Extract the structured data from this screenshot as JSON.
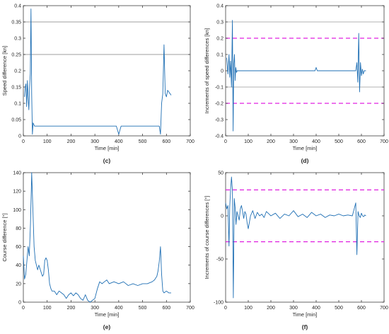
{
  "chart_data": [
    {
      "type": "line",
      "panel_label": "(c)",
      "xlabel": "Time [min]",
      "ylabel": "Speed difference [kn]",
      "xlim": [
        0,
        700
      ],
      "ylim": [
        0,
        0.4
      ],
      "xticks": [
        0,
        100,
        200,
        300,
        400,
        500,
        600,
        700
      ],
      "yticks": [
        0,
        0.05,
        0.1,
        0.15,
        0.2,
        0.25,
        0.3,
        0.35,
        0.4
      ],
      "ytick_labels": [
        "0",
        "0.05",
        "0.1",
        "0.15",
        "0.2",
        "0.25",
        "0.3",
        "0.35",
        "0.4"
      ],
      "reference_lines": [
        {
          "y": 0.25,
          "style": "solid",
          "color": "#7f7f7f"
        },
        {
          "y": 0.35,
          "style": "solid",
          "color": "#7f7f7f"
        }
      ],
      "series": [
        {
          "color": "#1f6fb4",
          "x": [
            5,
            8,
            11,
            14,
            17,
            20,
            23,
            26,
            29,
            32,
            35,
            38,
            41,
            44,
            47,
            50,
            55,
            60,
            100,
            200,
            300,
            390,
            400,
            410,
            500,
            570,
            575,
            580,
            585,
            590,
            595,
            600,
            605,
            610,
            615,
            620
          ],
          "y": [
            0.12,
            0.15,
            0.16,
            0.09,
            0.17,
            0.12,
            0.08,
            0.15,
            0.19,
            0.39,
            0.13,
            0.005,
            0.04,
            0.035,
            0.03,
            0.03,
            0.03,
            0.03,
            0.03,
            0.03,
            0.03,
            0.03,
            0.005,
            0.03,
            0.03,
            0.03,
            0.005,
            0.1,
            0.13,
            0.28,
            0.13,
            0.12,
            0.14,
            0.135,
            0.13,
            0.125
          ]
        }
      ]
    },
    {
      "type": "line",
      "panel_label": "(d)",
      "xlabel": "Time [min]",
      "ylabel": "Increments of speed differences [kn]",
      "xlim": [
        0,
        700
      ],
      "ylim": [
        -0.4,
        0.4
      ],
      "xticks": [
        0,
        100,
        200,
        300,
        400,
        500,
        600,
        700
      ],
      "yticks": [
        -0.4,
        -0.3,
        -0.2,
        -0.1,
        0,
        0.1,
        0.2,
        0.3,
        0.4
      ],
      "ytick_labels": [
        "-0.4",
        "-0.3",
        "-0.2",
        "-0.1",
        "0",
        "0.1",
        "0.2",
        "0.3",
        "0.4"
      ],
      "reference_lines": [
        {
          "y": 0.2,
          "style": "dashed",
          "color": "#e020e0"
        },
        {
          "y": -0.2,
          "style": "dashed",
          "color": "#e020e0"
        },
        {
          "y": 0.3,
          "style": "solid",
          "color": "#9a9a9a"
        },
        {
          "y": -0.1,
          "style": "solid",
          "color": "#9a9a9a"
        }
      ],
      "series": [
        {
          "color": "#1f6fb4",
          "x": [
            5,
            10,
            15,
            18,
            22,
            26,
            30,
            33,
            36,
            39,
            42,
            45,
            48,
            51,
            55,
            60,
            100,
            200,
            300,
            395,
            400,
            405,
            500,
            575,
            580,
            584,
            588,
            592,
            596,
            600,
            604,
            608,
            612,
            616,
            620
          ],
          "y": [
            0.08,
            -0.02,
            0.1,
            -0.04,
            0.06,
            -0.1,
            0.31,
            -0.37,
            0.04,
            0.1,
            -0.06,
            0.02,
            -0.01,
            0.0,
            0.0,
            0.0,
            0.0,
            0.0,
            0.0,
            0.0,
            0.02,
            0.0,
            0.0,
            0.0,
            0.05,
            -0.07,
            0.23,
            -0.13,
            0.05,
            -0.03,
            0.01,
            -0.02,
            0.0,
            0.0,
            0.0
          ]
        }
      ]
    },
    {
      "type": "line",
      "panel_label": "(e)",
      "xlabel": "Time [min]",
      "ylabel": "Course difference [°]",
      "xlim": [
        0,
        700
      ],
      "ylim": [
        0,
        140
      ],
      "xticks": [
        0,
        100,
        200,
        300,
        400,
        500,
        600,
        700
      ],
      "yticks": [
        0,
        20,
        40,
        60,
        80,
        100,
        120,
        140
      ],
      "ytick_labels": [
        "0",
        "20",
        "40",
        "60",
        "80",
        "100",
        "120",
        "140"
      ],
      "reference_lines": [],
      "series": [
        {
          "color": "#1f6fb4",
          "x": [
            0,
            5,
            10,
            15,
            20,
            25,
            30,
            35,
            40,
            45,
            50,
            55,
            60,
            65,
            70,
            75,
            80,
            85,
            90,
            95,
            100,
            105,
            110,
            115,
            120,
            130,
            140,
            150,
            160,
            170,
            180,
            190,
            200,
            210,
            220,
            230,
            240,
            250,
            260,
            270,
            280,
            290,
            300,
            310,
            320,
            330,
            340,
            350,
            360,
            380,
            400,
            420,
            440,
            460,
            480,
            500,
            520,
            540,
            550,
            560,
            565,
            570,
            575,
            580,
            585,
            590,
            600,
            610,
            620
          ],
          "y": [
            50,
            25,
            30,
            45,
            60,
            50,
            85,
            140,
            100,
            60,
            45,
            40,
            35,
            40,
            36,
            32,
            28,
            30,
            45,
            48,
            45,
            35,
            20,
            15,
            12,
            12,
            8,
            12,
            10,
            8,
            4,
            8,
            10,
            7,
            10,
            8,
            4,
            2,
            8,
            2,
            0,
            2,
            4,
            14,
            22,
            20,
            22,
            24,
            20,
            22,
            20,
            22,
            18,
            20,
            18,
            20,
            20,
            22,
            24,
            28,
            34,
            44,
            60,
            30,
            12,
            10,
            12,
            10,
            10
          ]
        }
      ]
    },
    {
      "type": "line",
      "panel_label": "(f)",
      "xlabel": "Time [min]",
      "ylabel": "Increments of course differences [°]",
      "xlim": [
        0,
        700
      ],
      "ylim": [
        -100,
        50
      ],
      "xticks": [
        0,
        100,
        200,
        300,
        400,
        500,
        600,
        700
      ],
      "yticks": [
        -100,
        -50,
        0,
        50
      ],
      "ytick_labels": [
        "-100",
        "-50",
        "0",
        "50"
      ],
      "reference_lines": [
        {
          "y": 30,
          "style": "dashed",
          "color": "#e020e0"
        },
        {
          "y": -30,
          "style": "dashed",
          "color": "#e020e0"
        }
      ],
      "series": [
        {
          "color": "#1f6fb4",
          "x": [
            0,
            5,
            10,
            15,
            18,
            22,
            26,
            30,
            34,
            38,
            42,
            46,
            50,
            55,
            60,
            65,
            70,
            75,
            80,
            85,
            90,
            95,
            100,
            110,
            120,
            130,
            140,
            150,
            160,
            170,
            180,
            200,
            220,
            240,
            260,
            280,
            300,
            320,
            340,
            360,
            380,
            400,
            420,
            440,
            460,
            480,
            500,
            520,
            540,
            560,
            570,
            575,
            580,
            585,
            590,
            595,
            600,
            605,
            610,
            615,
            620
          ],
          "y": [
            15,
            8,
            12,
            -35,
            10,
            30,
            45,
            30,
            -95,
            20,
            10,
            -10,
            5,
            0,
            -5,
            8,
            12,
            5,
            -3,
            5,
            2,
            -8,
            -15,
            0,
            6,
            -3,
            4,
            0,
            2,
            -2,
            5,
            0,
            3,
            -3,
            2,
            0,
            6,
            -1,
            2,
            -2,
            4,
            0,
            2,
            -2,
            1,
            0,
            2,
            0,
            1,
            0,
            10,
            15,
            -45,
            5,
            0,
            -2,
            3,
            0,
            -1,
            1,
            0
          ]
        }
      ]
    }
  ]
}
